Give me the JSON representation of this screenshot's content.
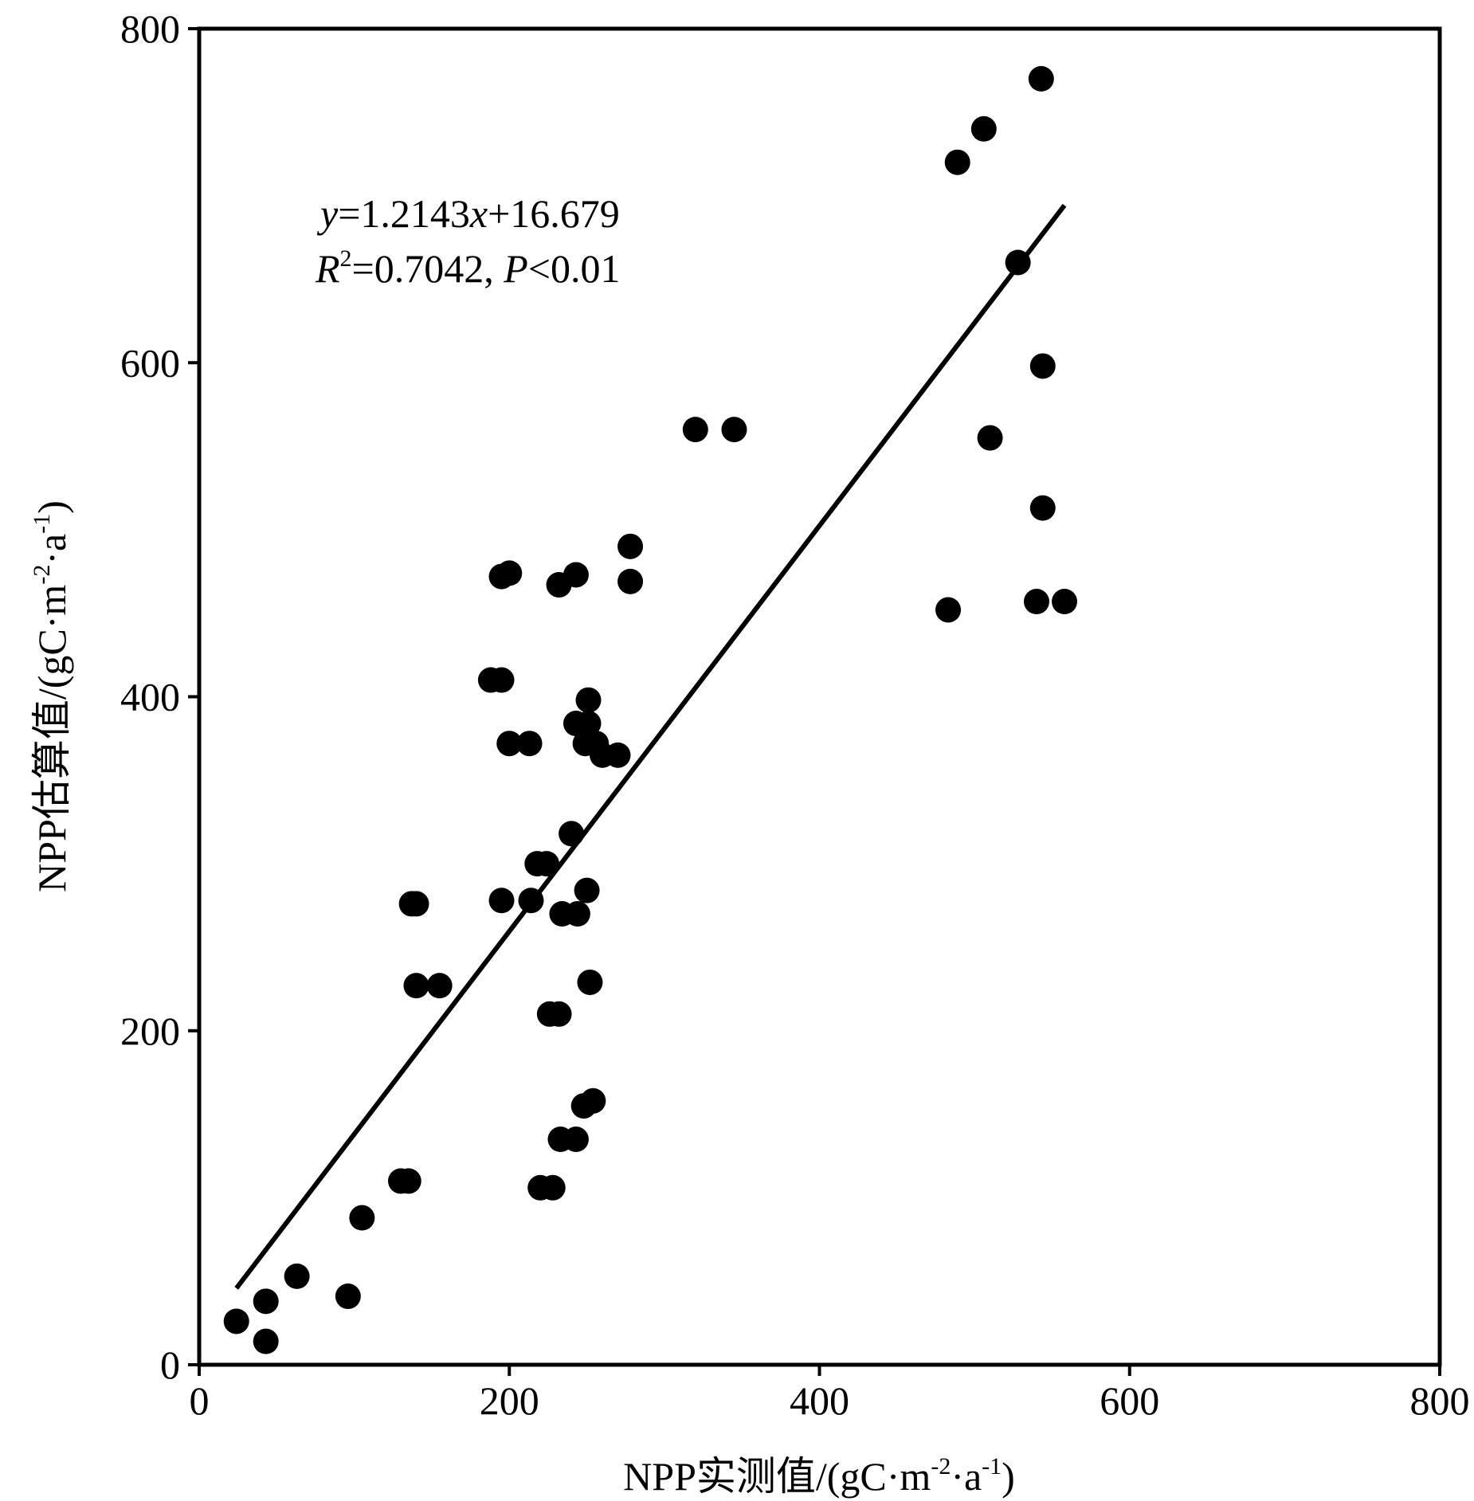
{
  "chart_data": {
    "type": "scatter",
    "title": "",
    "xlabel": {
      "text": "NPP实测值/(gC·m",
      "exp1": "-2",
      "mid": "·a",
      "exp2": "-1",
      "end": ")"
    },
    "ylabel": {
      "text": "NPP估算值/(gC·m",
      "exp1": "-2",
      "mid": "·a",
      "exp2": "-1",
      "end": ")"
    },
    "xlim": [
      0,
      800
    ],
    "ylim": [
      0,
      800
    ],
    "xticks": [
      "0",
      "200",
      "400",
      "600",
      "800"
    ],
    "yticks": [
      "0",
      "200",
      "400",
      "600",
      "800"
    ],
    "grid": false,
    "legend": "none",
    "marker_color": "#000000",
    "points": [
      {
        "x": 24,
        "y": 26
      },
      {
        "x": 43,
        "y": 14
      },
      {
        "x": 43,
        "y": 38
      },
      {
        "x": 63,
        "y": 53
      },
      {
        "x": 96,
        "y": 41
      },
      {
        "x": 105,
        "y": 88
      },
      {
        "x": 130,
        "y": 110
      },
      {
        "x": 135,
        "y": 110
      },
      {
        "x": 137,
        "y": 276
      },
      {
        "x": 140,
        "y": 276
      },
      {
        "x": 140,
        "y": 227
      },
      {
        "x": 155,
        "y": 227
      },
      {
        "x": 188,
        "y": 410
      },
      {
        "x": 195,
        "y": 410
      },
      {
        "x": 195,
        "y": 472
      },
      {
        "x": 200,
        "y": 474
      },
      {
        "x": 195,
        "y": 278
      },
      {
        "x": 200,
        "y": 372
      },
      {
        "x": 213,
        "y": 372
      },
      {
        "x": 214,
        "y": 278
      },
      {
        "x": 218,
        "y": 300
      },
      {
        "x": 224,
        "y": 300
      },
      {
        "x": 220,
        "y": 106
      },
      {
        "x": 228,
        "y": 106
      },
      {
        "x": 226,
        "y": 210
      },
      {
        "x": 232,
        "y": 210
      },
      {
        "x": 232,
        "y": 467
      },
      {
        "x": 243,
        "y": 473
      },
      {
        "x": 233,
        "y": 135
      },
      {
        "x": 243,
        "y": 135
      },
      {
        "x": 234,
        "y": 270
      },
      {
        "x": 244,
        "y": 270
      },
      {
        "x": 240,
        "y": 318
      },
      {
        "x": 243,
        "y": 384
      },
      {
        "x": 251,
        "y": 384
      },
      {
        "x": 249,
        "y": 372
      },
      {
        "x": 256,
        "y": 372
      },
      {
        "x": 260,
        "y": 365
      },
      {
        "x": 270,
        "y": 365
      },
      {
        "x": 251,
        "y": 398
      },
      {
        "x": 250,
        "y": 284
      },
      {
        "x": 252,
        "y": 229
      },
      {
        "x": 248,
        "y": 155
      },
      {
        "x": 254,
        "y": 158
      },
      {
        "x": 278,
        "y": 490
      },
      {
        "x": 278,
        "y": 469
      },
      {
        "x": 320,
        "y": 560
      },
      {
        "x": 345,
        "y": 560
      },
      {
        "x": 483,
        "y": 452
      },
      {
        "x": 489,
        "y": 720
      },
      {
        "x": 506,
        "y": 740
      },
      {
        "x": 510,
        "y": 555
      },
      {
        "x": 528,
        "y": 660
      },
      {
        "x": 540,
        "y": 457
      },
      {
        "x": 558,
        "y": 457
      },
      {
        "x": 544,
        "y": 598
      },
      {
        "x": 544,
        "y": 513
      },
      {
        "x": 543,
        "y": 770
      }
    ],
    "trendline": {
      "slope": 1.2143,
      "intercept": 16.679,
      "x_range": [
        24,
        558
      ]
    },
    "annotation": {
      "eq_y": "y",
      "eq_rest": "=1.2143",
      "eq_x": "x",
      "eq_tail": "+16.679",
      "r": "R",
      "r_exp": "2",
      "r_val": "=0.7042,  ",
      "p": "P",
      "p_val": "<0.01"
    }
  }
}
